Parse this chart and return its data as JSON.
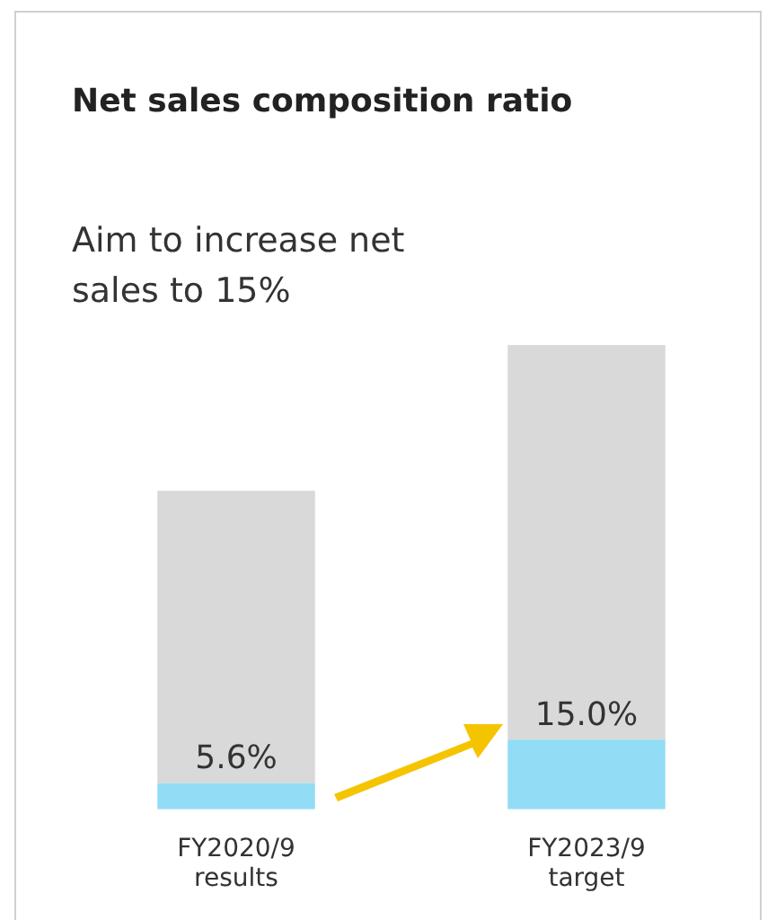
{
  "chart_data": {
    "type": "bar",
    "title": "Net sales composition ratio",
    "subtitle": "Aim to increase net sales to 15%",
    "categories": [
      "FY2020/9 results",
      "FY2023/9 target"
    ],
    "stacked": true,
    "tick_labels": false,
    "series": [
      {
        "color": "#92dcf5",
        "values": [
          5.6,
          15.0
        ],
        "value_labels": [
          "5.6%",
          "15.0%"
        ]
      },
      {
        "color": "#d9d9d9",
        "values": [
          63.0,
          85.0
        ]
      }
    ]
  }
}
